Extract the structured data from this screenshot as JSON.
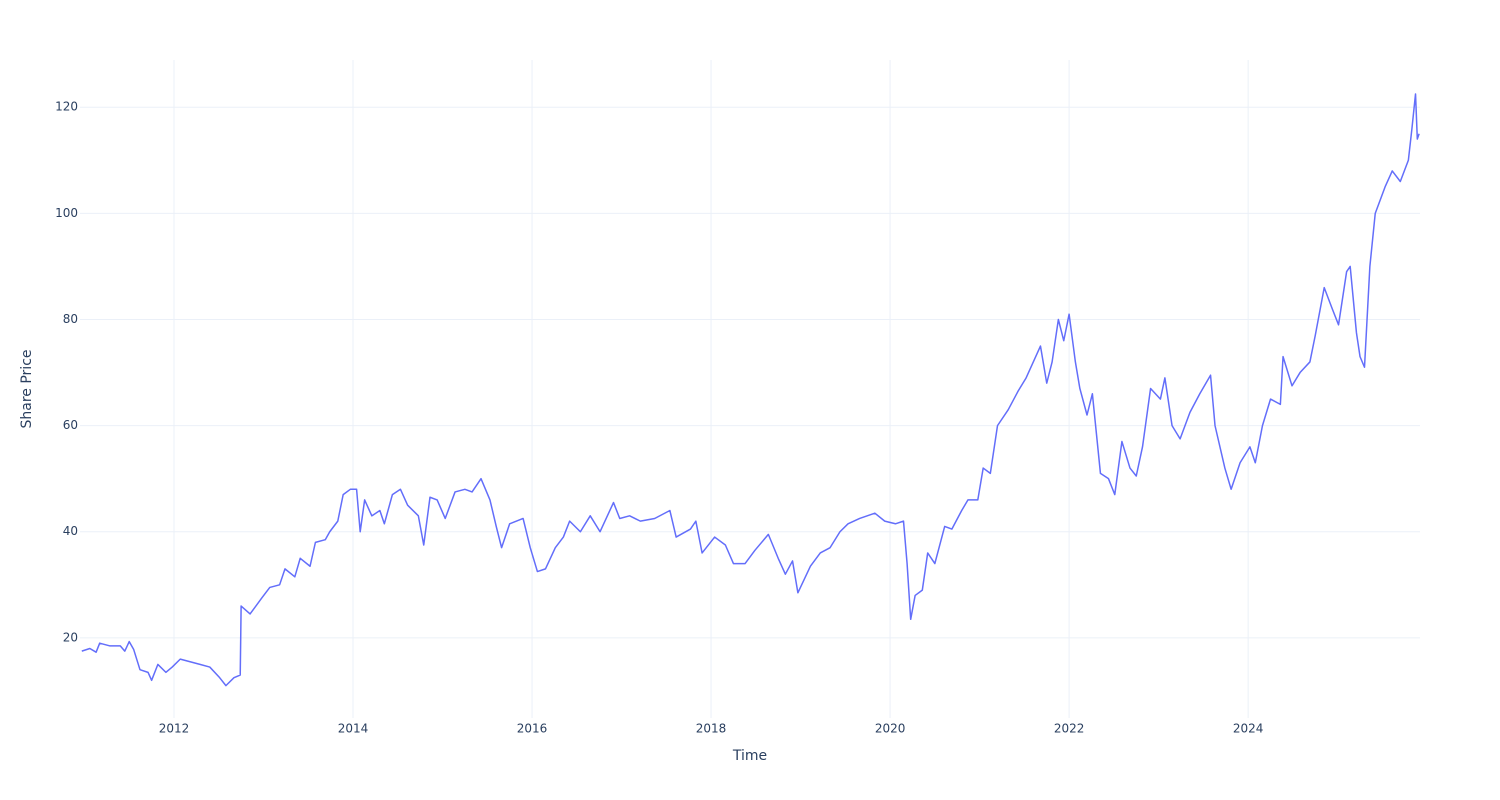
{
  "chart_data": {
    "type": "line",
    "x_label": "Time",
    "y_label": "Share Price",
    "x": [
      2010.97,
      2011.06,
      2011.13,
      2011.17,
      2011.28,
      2011.4,
      2011.45,
      2011.5,
      2011.55,
      2011.62,
      2011.71,
      2011.75,
      2011.82,
      2011.91,
      2011.98,
      2012.07,
      2012.18,
      2012.29,
      2012.4,
      2012.51,
      2012.58,
      2012.67,
      2012.74,
      2012.75,
      2012.85,
      2012.98,
      2013.07,
      2013.18,
      2013.24,
      2013.35,
      2013.41,
      2013.52,
      2013.58,
      2013.69,
      2013.74,
      2013.83,
      2013.89,
      2013.97,
      2014.04,
      2014.08,
      2014.13,
      2014.21,
      2014.3,
      2014.35,
      2014.44,
      2014.53,
      2014.61,
      2014.73,
      2014.79,
      2014.86,
      2014.94,
      2015.03,
      2015.14,
      2015.25,
      2015.33,
      2015.43,
      2015.53,
      2015.6,
      2015.66,
      2015.75,
      2015.9,
      2015.98,
      2016.06,
      2016.15,
      2016.26,
      2016.35,
      2016.42,
      2016.54,
      2016.65,
      2016.76,
      2016.91,
      2016.98,
      2017.09,
      2017.21,
      2017.37,
      2017.54,
      2017.61,
      2017.77,
      2017.83,
      2017.9,
      2018.04,
      2018.16,
      2018.25,
      2018.38,
      2018.49,
      2018.64,
      2018.75,
      2018.83,
      2018.91,
      2018.97,
      2019.11,
      2019.22,
      2019.33,
      2019.44,
      2019.53,
      2019.66,
      2019.83,
      2019.94,
      2020.06,
      2020.15,
      2020.19,
      2020.23,
      2020.28,
      2020.36,
      2020.42,
      2020.5,
      2020.61,
      2020.69,
      2020.8,
      2020.87,
      2020.98,
      2021.04,
      2021.12,
      2021.2,
      2021.32,
      2021.43,
      2021.52,
      2021.68,
      2021.75,
      2021.81,
      2021.88,
      2021.94,
      2022.0,
      2022.07,
      2022.12,
      2022.2,
      2022.26,
      2022.35,
      2022.44,
      2022.51,
      2022.59,
      2022.68,
      2022.75,
      2022.82,
      2022.91,
      2023.02,
      2023.07,
      2023.15,
      2023.24,
      2023.35,
      2023.46,
      2023.58,
      2023.63,
      2023.74,
      2023.81,
      2023.91,
      2024.02,
      2024.08,
      2024.16,
      2024.25,
      2024.36,
      2024.39,
      2024.49,
      2024.58,
      2024.69,
      2024.75,
      2024.85,
      2024.94,
      2025.01,
      2025.1,
      2025.14,
      2025.21,
      2025.25,
      2025.3,
      2025.36,
      2025.42,
      2025.53,
      2025.61,
      2025.7,
      2025.79,
      2025.83,
      2025.87,
      2025.89,
      2025.91
    ],
    "series": [
      {
        "name": "Share Price",
        "color": "#636efa",
        "values": [
          17.5,
          18,
          17.3,
          19,
          18.5,
          18.5,
          17.5,
          19.3,
          17.8,
          14,
          13.5,
          12,
          15,
          13.5,
          14.5,
          16,
          15.5,
          15,
          14.5,
          12.5,
          11,
          12.5,
          13,
          26,
          24.5,
          27.5,
          29.5,
          30,
          33,
          31.5,
          35,
          33.5,
          38,
          38.5,
          40,
          42,
          47,
          48,
          48,
          40,
          46,
          43,
          44,
          41.5,
          47,
          48,
          45,
          43,
          37.5,
          46.5,
          46,
          42.5,
          47.5,
          48,
          47.5,
          50,
          46,
          41,
          37,
          41.5,
          42.5,
          37,
          32.5,
          33,
          37,
          39,
          42,
          40,
          43,
          40,
          45.5,
          42.5,
          43,
          42,
          42.5,
          44,
          39,
          40.5,
          42,
          36,
          39,
          37.5,
          34,
          34,
          36.5,
          39.5,
          35,
          32,
          34.5,
          28.5,
          33.5,
          36,
          37,
          40,
          41.5,
          42.5,
          43.5,
          42,
          41.5,
          42,
          34,
          23.5,
          28,
          29,
          36,
          34,
          41,
          40.5,
          44,
          46,
          46,
          52,
          51,
          60,
          63,
          66.5,
          69,
          75,
          68,
          72,
          80,
          76,
          81,
          72,
          67,
          62,
          66,
          51,
          50,
          47,
          57,
          52,
          50.5,
          56,
          67,
          65,
          69,
          60,
          57.5,
          62.5,
          66,
          69.5,
          60,
          52,
          48,
          53,
          56,
          53,
          60,
          65,
          64,
          73,
          67.5,
          70,
          72,
          77,
          86,
          82,
          79,
          89,
          90,
          77.5,
          73,
          71,
          90,
          100,
          105,
          108,
          106,
          110,
          116,
          122.5,
          114,
          115
        ]
      }
    ],
    "xlim": [
      2010.95,
      2025.92
    ],
    "xticks": [
      2012,
      2014,
      2016,
      2018,
      2020,
      2022,
      2024
    ],
    "ylim": [
      4.9,
      128.9
    ],
    "yticks": [
      20,
      40,
      60,
      80,
      100,
      120
    ],
    "grid": true
  }
}
